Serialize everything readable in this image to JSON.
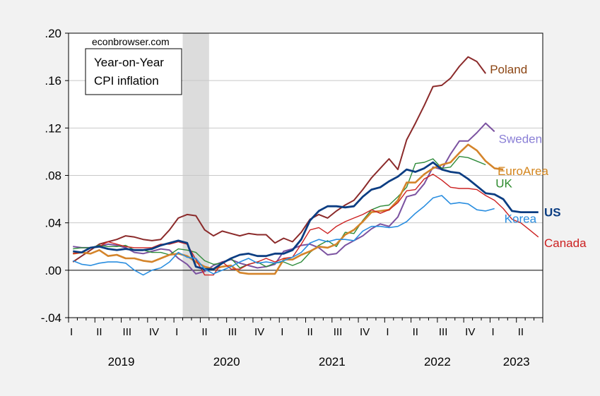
{
  "source": "econbrowser.com",
  "legend_box": {
    "line1": "Year-on-Year",
    "line2": "CPI inflation"
  },
  "chart_data": {
    "type": "line",
    "x_unit": "month",
    "x_start": "2019-01",
    "x_end": "2023-06",
    "ylim": [
      -0.04,
      0.2
    ],
    "yticks": [
      ".20",
      ".16",
      ".12",
      ".08",
      ".04",
      ".00",
      "-.04"
    ],
    "ytick_values": [
      0.2,
      0.16,
      0.12,
      0.08,
      0.04,
      0.0,
      -0.04
    ],
    "quarter_labels": [
      "I",
      "II",
      "III",
      "IV",
      "I",
      "II",
      "III",
      "IV",
      "I",
      "II",
      "III",
      "IV",
      "I",
      "II",
      "III",
      "IV",
      "I",
      "II"
    ],
    "year_labels": [
      "2019",
      "2020",
      "2021",
      "2022",
      "2023"
    ],
    "grid": true,
    "recession_shade": {
      "start": "2020-02",
      "end": "2020-04",
      "color": "#dcdcdc"
    },
    "series": [
      {
        "name": "Poland",
        "color": "#8b2a2a",
        "label_color": "#8b4513",
        "width": 2,
        "values": [
          0.007,
          0.012,
          0.017,
          0.022,
          0.024,
          0.026,
          0.029,
          0.028,
          0.026,
          0.025,
          0.026,
          0.034,
          0.044,
          0.047,
          0.046,
          0.034,
          0.029,
          0.033,
          0.031,
          0.029,
          0.031,
          0.03,
          0.03,
          0.023,
          0.027,
          0.024,
          0.032,
          0.043,
          0.047,
          0.044,
          0.05,
          0.055,
          0.059,
          0.068,
          0.078,
          0.086,
          0.094,
          0.085,
          0.11,
          0.124,
          0.139,
          0.155,
          0.156,
          0.162,
          0.172,
          0.18,
          0.176,
          0.166
        ]
      },
      {
        "name": "Sweden",
        "color": "#7b52a0",
        "label_color": "#8a7fd6",
        "width": 2,
        "values": [
          0.02,
          0.019,
          0.019,
          0.02,
          0.022,
          0.021,
          0.019,
          0.015,
          0.014,
          0.016,
          0.018,
          0.017,
          0.01,
          0.005,
          -0.003,
          -0.001,
          0.004,
          0.007,
          0.009,
          0.006,
          0.004,
          0.002,
          0.003,
          0.005,
          0.016,
          0.018,
          0.021,
          0.022,
          0.019,
          0.013,
          0.014,
          0.021,
          0.025,
          0.029,
          0.035,
          0.039,
          0.037,
          0.045,
          0.062,
          0.064,
          0.073,
          0.087,
          0.085,
          0.098,
          0.109,
          0.109,
          0.116,
          0.124,
          0.117
        ]
      },
      {
        "name": "UK",
        "color": "#2e8b3a",
        "label_color": "#2e8b2e",
        "width": 1.4,
        "values": [
          0.018,
          0.019,
          0.019,
          0.021,
          0.02,
          0.02,
          0.021,
          0.017,
          0.017,
          0.015,
          0.015,
          0.013,
          0.018,
          0.017,
          0.015,
          0.008,
          0.005,
          0.006,
          0.01,
          0.002,
          0.005,
          0.007,
          0.003,
          0.006,
          0.007,
          0.004,
          0.007,
          0.015,
          0.021,
          0.025,
          0.02,
          0.032,
          0.031,
          0.042,
          0.051,
          0.054,
          0.055,
          0.062,
          0.07,
          0.09,
          0.091,
          0.094,
          0.086,
          0.087,
          0.096,
          0.095,
          0.092,
          0.089
        ]
      },
      {
        "name": "EuroArea",
        "color": "#d4842a",
        "label_color": "#d4861e",
        "width": 2.6,
        "values": [
          0.014,
          0.015,
          0.014,
          0.017,
          0.012,
          0.013,
          0.01,
          0.01,
          0.008,
          0.007,
          0.01,
          0.013,
          0.014,
          0.012,
          0.007,
          0.003,
          0.001,
          0.003,
          0.004,
          -0.002,
          -0.003,
          -0.003,
          -0.003,
          -0.003,
          0.009,
          0.009,
          0.013,
          0.016,
          0.02,
          0.019,
          0.022,
          0.03,
          0.034,
          0.041,
          0.049,
          0.05,
          0.051,
          0.059,
          0.074,
          0.074,
          0.081,
          0.086,
          0.089,
          0.091,
          0.099,
          0.106,
          0.101,
          0.092,
          0.086,
          0.085
        ]
      },
      {
        "name": "Canada",
        "color": "#cc2222",
        "label_color": "#cc2020",
        "width": 1.4,
        "values": [
          0.014,
          0.015,
          0.019,
          0.02,
          0.024,
          0.022,
          0.02,
          0.019,
          0.019,
          0.019,
          0.022,
          0.022,
          0.024,
          0.022,
          0.009,
          -0.004,
          -0.004,
          0.007,
          0.001,
          0.001,
          0.005,
          0.007,
          0.01,
          0.007,
          0.01,
          0.011,
          0.022,
          0.034,
          0.036,
          0.031,
          0.037,
          0.041,
          0.044,
          0.047,
          0.051,
          0.048,
          0.051,
          0.057,
          0.067,
          0.068,
          0.077,
          0.081,
          0.076,
          0.07,
          0.069,
          0.069,
          0.068,
          0.063,
          0.059,
          0.052,
          0.043,
          0.04,
          0.034,
          0.028
        ]
      },
      {
        "name": "US",
        "color": "#0b3d82",
        "label_color": "#0b3d82",
        "width": 2.8,
        "values": [
          0.016,
          0.015,
          0.019,
          0.02,
          0.018,
          0.017,
          0.018,
          0.017,
          0.017,
          0.018,
          0.021,
          0.023,
          0.025,
          0.023,
          0.003,
          0.001,
          0.001,
          0.006,
          0.01,
          0.013,
          0.014,
          0.012,
          0.012,
          0.014,
          0.014,
          0.017,
          0.026,
          0.042,
          0.05,
          0.054,
          0.054,
          0.053,
          0.054,
          0.062,
          0.068,
          0.07,
          0.075,
          0.079,
          0.085,
          0.083,
          0.086,
          0.091,
          0.085,
          0.083,
          0.082,
          0.077,
          0.071,
          0.065,
          0.064,
          0.06,
          0.05,
          0.049,
          0.049,
          0.049
        ]
      },
      {
        "name": "Korea",
        "color": "#2a8ee0",
        "label_color": "#2a8ee0",
        "width": 1.6,
        "values": [
          0.008,
          0.005,
          0.004,
          0.006,
          0.007,
          0.007,
          0.006,
          0.0,
          -0.004,
          0.0,
          0.002,
          0.007,
          0.015,
          0.011,
          0.01,
          0.001,
          -0.003,
          0.0,
          0.003,
          0.007,
          0.01,
          0.006,
          0.007,
          0.006,
          0.008,
          0.011,
          0.015,
          0.023,
          0.026,
          0.024,
          0.026,
          0.026,
          0.025,
          0.033,
          0.037,
          0.037,
          0.036,
          0.037,
          0.041,
          0.048,
          0.054,
          0.061,
          0.063,
          0.056,
          0.057,
          0.056,
          0.051,
          0.05,
          0.052
        ]
      }
    ]
  }
}
